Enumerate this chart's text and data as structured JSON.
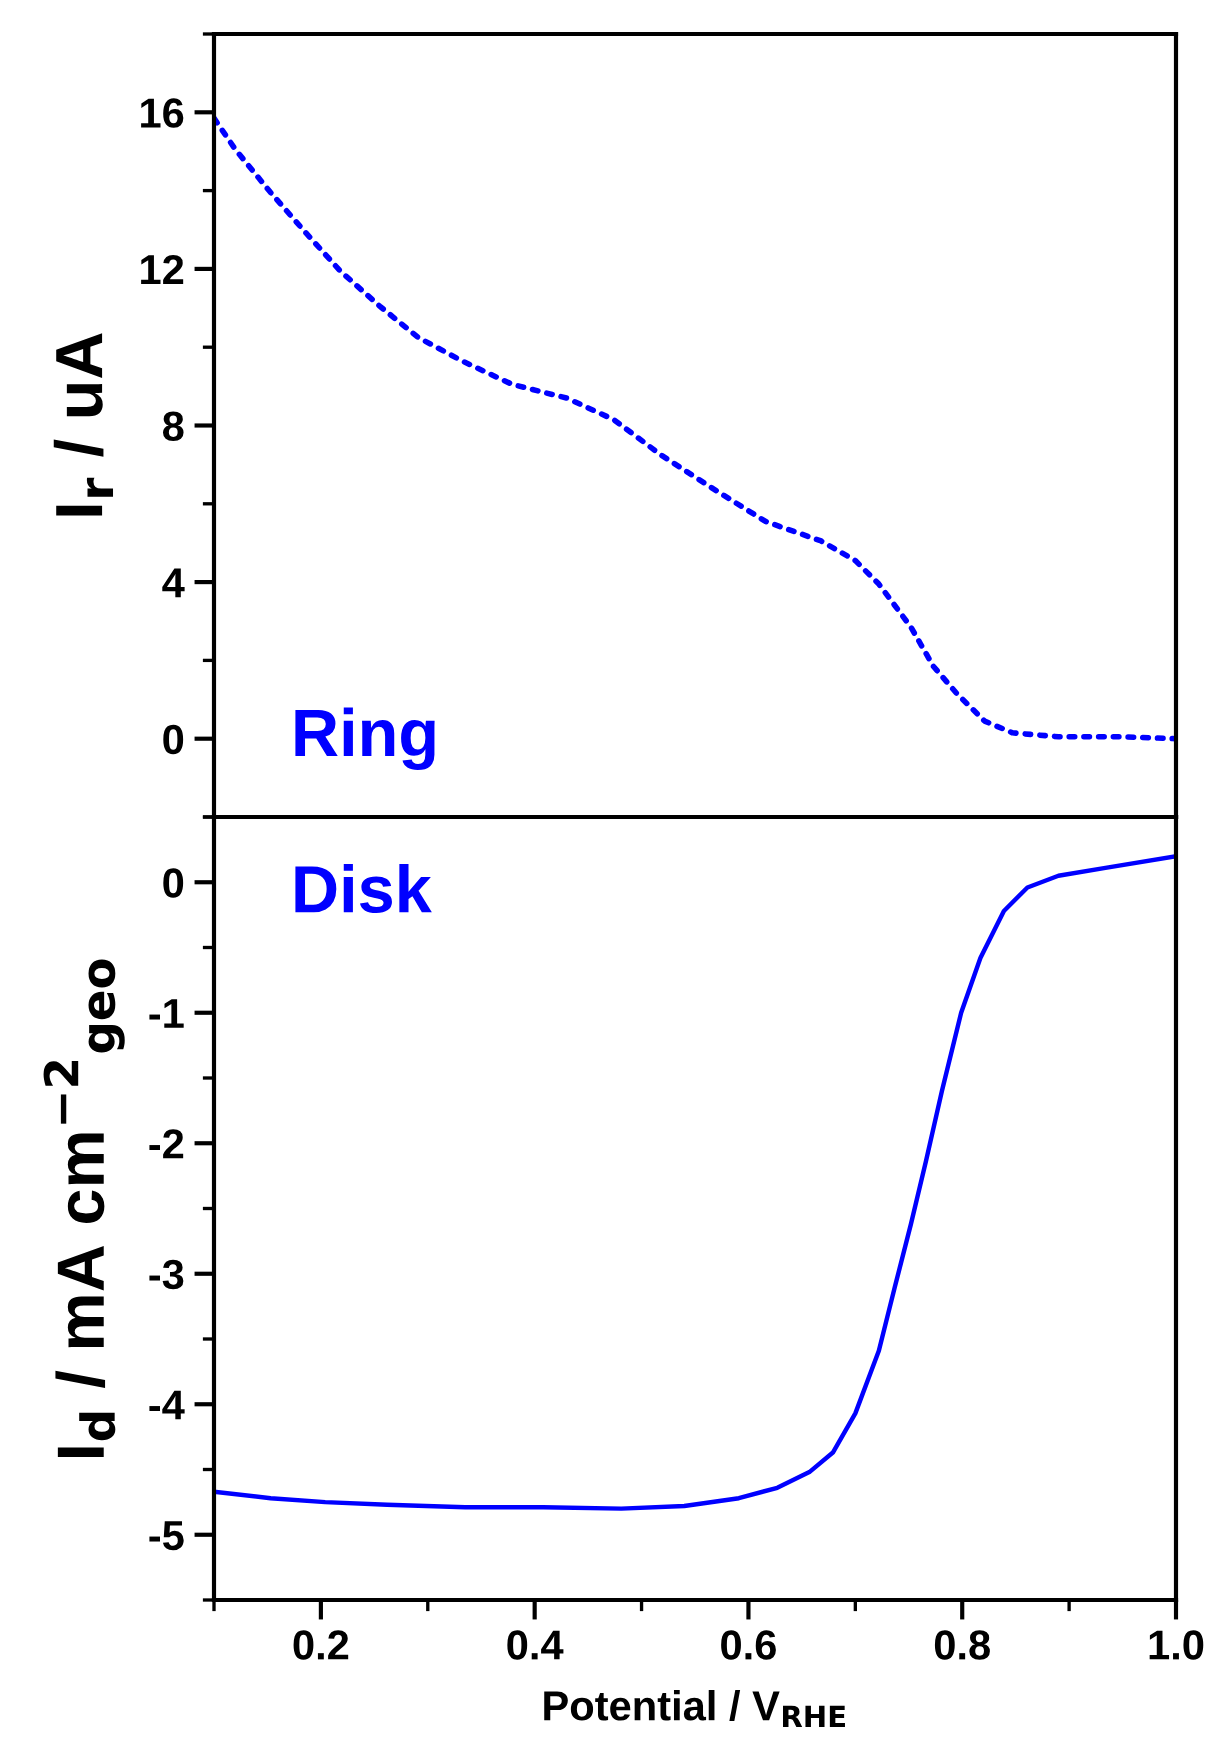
{
  "chart_data": [
    {
      "type": "line",
      "ylabel": "I$_{r}$ / uA",
      "annotations": [
        "Ring"
      ],
      "tick_labels": "y",
      "line_style": "dotted",
      "xlim": [
        0.1,
        1.0
      ],
      "xticks": [
        {
          "value": 0.1,
          "label": null
        },
        {
          "value": 0.2,
          "label": null
        },
        {
          "value": 0.3,
          "label": null
        },
        {
          "value": 0.4,
          "label": null
        },
        {
          "value": 0.5,
          "label": null
        },
        {
          "value": 0.6,
          "label": null
        },
        {
          "value": 0.7,
          "label": null
        },
        {
          "value": 0.8,
          "label": null
        },
        {
          "value": 0.9,
          "label": null
        },
        {
          "value": 1.0,
          "label": null
        }
      ],
      "ylim": [
        -2,
        18
      ],
      "yticks": [
        {
          "value": -2,
          "label": null
        },
        0,
        {
          "value": 2,
          "label": null
        },
        4,
        {
          "value": 6,
          "label": null
        },
        8,
        {
          "value": 10,
          "label": null
        },
        12,
        {
          "value": 14,
          "label": null
        },
        16,
        {
          "value": 18,
          "label": null
        }
      ],
      "x": [
        0.1,
        0.12,
        0.153,
        0.185,
        0.218,
        0.255,
        0.291,
        0.332,
        0.379,
        0.43,
        0.474,
        0.518,
        0.569,
        0.616,
        0.668,
        0.7,
        0.722,
        0.752,
        0.773,
        0.795,
        0.821,
        0.847,
        0.89,
        0.949,
        1.0
      ],
      "series": [
        {
          "color": "#0000ff",
          "values": [
            15.85,
            15.05,
            13.95,
            12.95,
            11.95,
            11.05,
            10.25,
            9.65,
            9.05,
            8.7,
            8.15,
            7.25,
            6.35,
            5.55,
            5.05,
            4.55,
            3.95,
            2.85,
            1.85,
            1.15,
            0.45,
            0.15,
            0.05,
            0.05,
            0.0
          ]
        }
      ]
    },
    {
      "type": "line",
      "xlabel": "Potential / V$_{RHE}$",
      "ylabel": "I$_{d}$ / mA cm$^{−2}$$_{geo}$",
      "annotations": [
        "Disk"
      ],
      "line_style": "solid",
      "xlim": [
        0.1,
        1.0
      ],
      "xticks": [
        {
          "value": 0.1,
          "label": null
        },
        0.2,
        {
          "value": 0.3,
          "label": null
        },
        0.4,
        {
          "value": 0.5,
          "label": null
        },
        0.6,
        {
          "value": 0.7,
          "label": null
        },
        0.8,
        {
          "value": 0.9,
          "label": null
        },
        {
          "value": 1.0,
          "label": "1.0"
        }
      ],
      "ylim": [
        -5.5,
        0.5
      ],
      "yticks": [
        {
          "value": -5.5,
          "label": null
        },
        -5,
        {
          "value": -4.5,
          "label": null
        },
        -4,
        {
          "value": -3.5,
          "label": null
        },
        -3,
        {
          "value": -2.5,
          "label": null
        },
        -2,
        {
          "value": -1.5,
          "label": null
        },
        -1,
        {
          "value": -0.5,
          "label": null
        },
        0,
        {
          "value": 0.5,
          "label": null
        }
      ],
      "x": [
        0.1,
        0.153,
        0.204,
        0.262,
        0.335,
        0.408,
        0.481,
        0.54,
        0.591,
        0.627,
        0.657,
        0.679,
        0.7,
        0.722,
        0.737,
        0.752,
        0.766,
        0.781,
        0.799,
        0.817,
        0.839,
        0.861,
        0.89,
        0.934,
        1.0
      ],
      "series": [
        {
          "color": "#0000ff",
          "values": [
            -4.67,
            -4.72,
            -4.75,
            -4.77,
            -4.79,
            -4.79,
            -4.8,
            -4.78,
            -4.72,
            -4.64,
            -4.52,
            -4.37,
            -4.07,
            -3.59,
            -3.1,
            -2.62,
            -2.14,
            -1.6,
            -1.0,
            -0.58,
            -0.22,
            -0.04,
            0.05,
            0.11,
            0.2
          ]
        }
      ]
    }
  ]
}
